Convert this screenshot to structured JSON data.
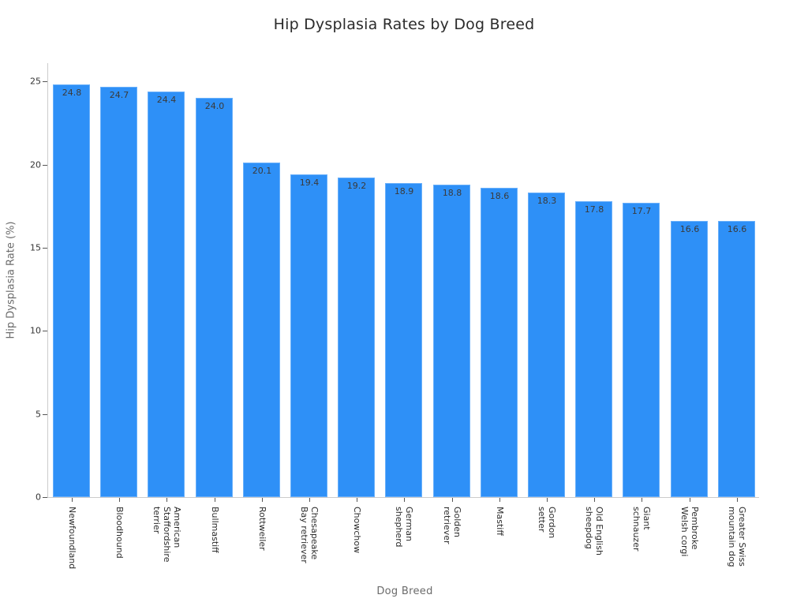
{
  "chart_data": {
    "type": "bar",
    "title": "Hip Dysplasia Rates by Dog Breed",
    "xlabel": "Dog Breed",
    "ylabel": "Hip Dysplasia Rate (%)",
    "ylim": [
      0,
      26.2
    ],
    "yticks": [
      0,
      5,
      10,
      15,
      20,
      25
    ],
    "grid": false,
    "legend": null,
    "bar_color": "#2e90f7",
    "categories": [
      "Newfoundland",
      "Bloodhound",
      "American Staffordshire terrier",
      "Bullmastiff",
      "Rottweiler",
      "Chesapeake Bay retriever",
      "Chowchow",
      "German shepherd",
      "Golden retriever",
      "Mastiff",
      "Gordon setter",
      "Old English sheepdog",
      "Giant schnauzer",
      "Pembroke Welsh corgi",
      "Greater Swiss mountain dog"
    ],
    "category_labels_display": [
      "Newfoundland",
      "Bloodhound",
      "American\nStaffordshire\nterrier",
      "Bullmastiff",
      "Rottweiler",
      "Chesapeake\nBay retriever",
      "Chowchow",
      "German\nshepherd",
      "Golden\nretriever",
      "Mastiff",
      "Gordon\nsetter",
      "Old English\nsheepdog",
      "Giant\nschnauzer",
      "Pembroke\nWelsh corgi",
      "Greater Swiss\nmountain dog"
    ],
    "values": [
      24.8,
      24.7,
      24.4,
      24.0,
      20.1,
      19.4,
      19.2,
      18.9,
      18.8,
      18.6,
      18.3,
      17.8,
      17.7,
      16.6,
      16.6
    ],
    "value_labels": [
      "24.8",
      "24.7",
      "24.4",
      "24.0",
      "20.1",
      "19.4",
      "19.2",
      "18.9",
      "18.8",
      "18.6",
      "18.3",
      "17.8",
      "17.7",
      "16.6",
      "16.6"
    ]
  }
}
